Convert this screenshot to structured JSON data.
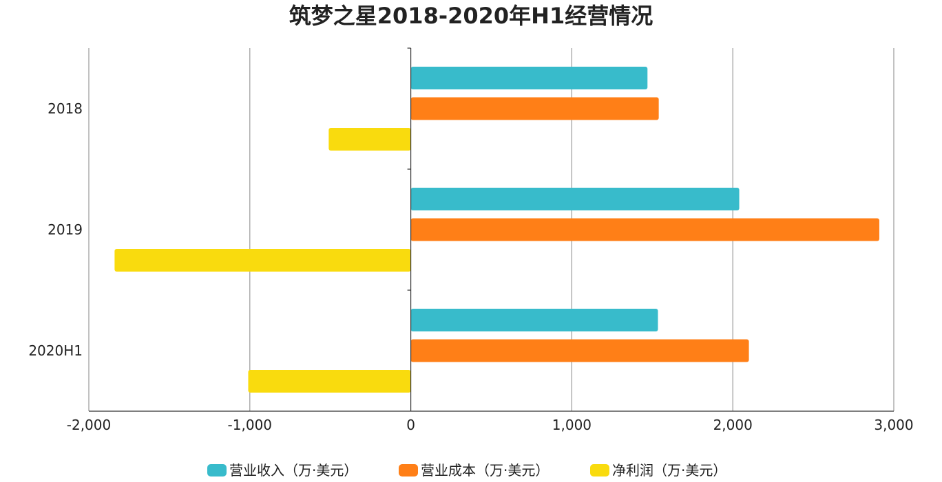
{
  "chart_data": {
    "type": "bar",
    "orientation": "horizontal",
    "title": "筑梦之星2018-2020年H1经营情况",
    "categories": [
      "2018",
      "2019",
      "2020H1"
    ],
    "series": [
      {
        "name": "营业收入（万·美元）",
        "color": "#38BBCB",
        "values": [
          1470,
          2040,
          1535
        ]
      },
      {
        "name": "营业成本（万·美元）",
        "color": "#FF7F17",
        "values": [
          1540,
          2910,
          2100
        ]
      },
      {
        "name": "净利润（万·美元）",
        "color": "#F9DB0E",
        "values": [
          -510,
          -1840,
          -1010
        ]
      }
    ],
    "xlim": [
      -2000,
      3000
    ],
    "xticks": [
      -2000,
      -1000,
      0,
      1000,
      2000,
      3000
    ],
    "xtick_labels": [
      "-2,000",
      "-1,000",
      "0",
      "1,000",
      "2,000",
      "3,000"
    ],
    "xlabel": "",
    "ylabel": "",
    "grid": "vertical",
    "legend_position": "bottom"
  }
}
